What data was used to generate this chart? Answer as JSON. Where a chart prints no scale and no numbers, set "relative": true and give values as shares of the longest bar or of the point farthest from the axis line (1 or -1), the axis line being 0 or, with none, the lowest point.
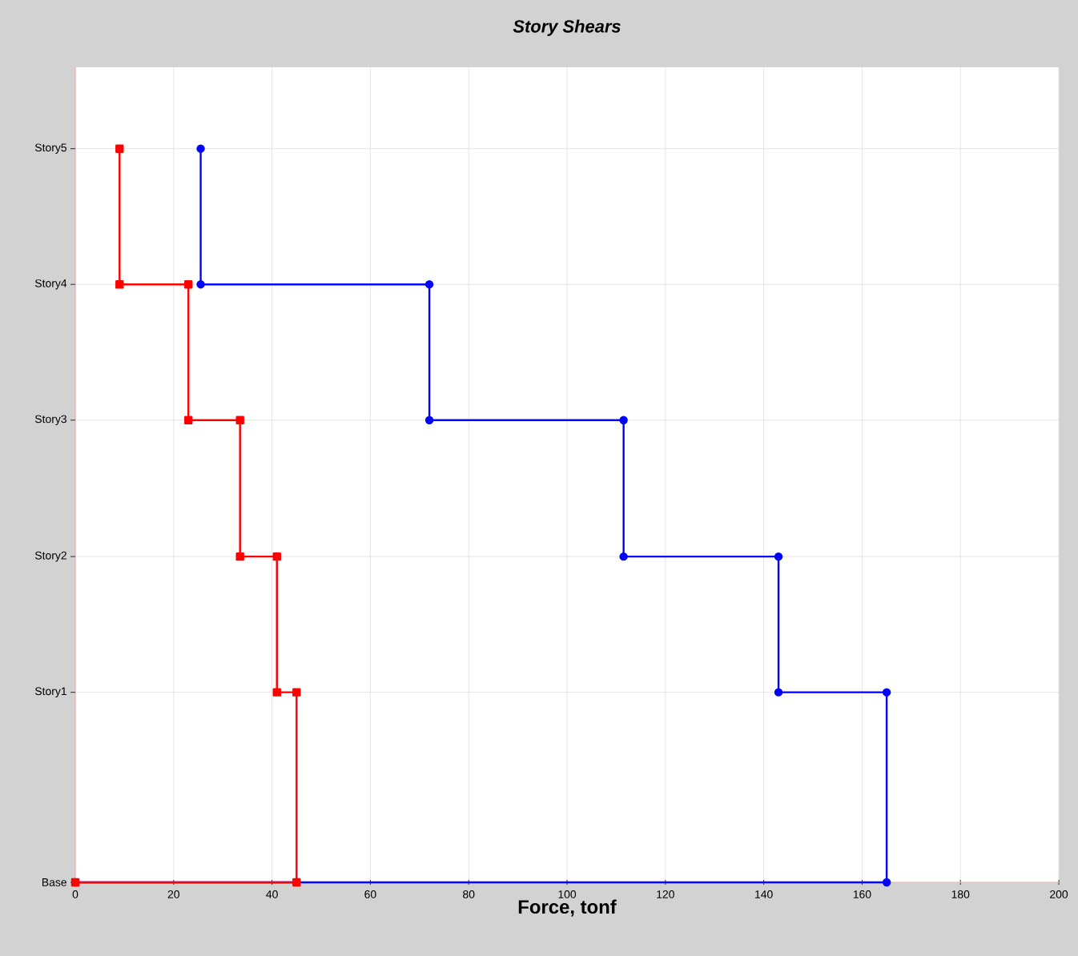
{
  "chart_data": {
    "type": "line",
    "title": "Story Shears",
    "xlabel": "Force, tonf",
    "xlim": [
      0,
      200
    ],
    "xticks": [
      0,
      20,
      40,
      60,
      80,
      100,
      120,
      140,
      160,
      180,
      200
    ],
    "relative": true,
    "grid": "x",
    "tick_labels": "x",
    "ref_lines": [
      {
        "axis": "y",
        "value": 0,
        "label": "Base",
        "color": "#dddddd"
      },
      {
        "axis": "y",
        "value": 0.259,
        "label": "Story1",
        "color": "#dddddd"
      },
      {
        "axis": "y",
        "value": 0.444,
        "label": "Story2",
        "color": "#dddddd"
      },
      {
        "axis": "y",
        "value": 0.63,
        "label": "Story3",
        "color": "#dddddd"
      },
      {
        "axis": "y",
        "value": 0.815,
        "label": "Story4",
        "color": "#dddddd"
      },
      {
        "axis": "y",
        "value": 1,
        "label": "Story5",
        "color": "#dddddd"
      }
    ],
    "series": [
      {
        "color": "#0000ff",
        "marker": "circle",
        "x": [
          0,
          165,
          165,
          143,
          143,
          111.5,
          111.5,
          72,
          72,
          25.5,
          25.5
        ],
        "values": [
          0,
          0,
          0.259,
          0.259,
          0.444,
          0.444,
          0.63,
          0.63,
          0.815,
          0.815,
          1
        ]
      },
      {
        "color": "#ff0000",
        "marker": "square",
        "x": [
          0,
          45,
          45,
          41,
          41,
          33.5,
          33.5,
          23,
          23,
          9,
          9
        ],
        "values": [
          0,
          0,
          0.259,
          0.259,
          0.444,
          0.444,
          0.63,
          0.63,
          0.815,
          0.815,
          1
        ]
      }
    ]
  }
}
